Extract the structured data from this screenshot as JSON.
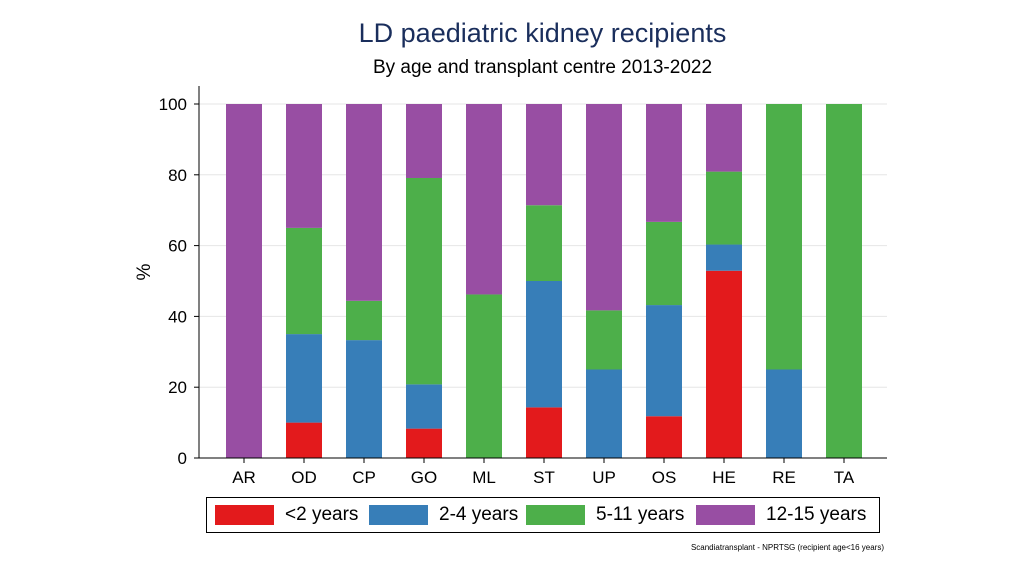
{
  "chart_data": {
    "type": "stacked-bar",
    "title": "LD paediatric kidney recipients",
    "subtitle": "By age and transplant centre 2013-2022",
    "xlabel": "",
    "ylabel": "%",
    "ylim": [
      0,
      100
    ],
    "yticks": [
      0,
      20,
      40,
      60,
      80,
      100
    ],
    "grid": true,
    "categories": [
      "AR",
      "OD",
      "CP",
      "GO",
      "ML",
      "ST",
      "UP",
      "OS",
      "HE",
      "RE",
      "TA"
    ],
    "series": [
      {
        "name": "<2 years",
        "color": "#e31a1c",
        "values": [
          0,
          10,
          0,
          8.3,
          0,
          14.3,
          0,
          11.8,
          52.9,
          0,
          0
        ]
      },
      {
        "name": "2-4 years",
        "color": "#377eb8",
        "values": [
          0,
          25,
          33.3,
          12.5,
          0,
          35.7,
          25,
          31.4,
          7.4,
          25,
          0
        ]
      },
      {
        "name": "5-11 years",
        "color": "#4daf4a",
        "values": [
          0,
          30,
          11.1,
          58.3,
          46.2,
          21.4,
          16.7,
          23.5,
          20.6,
          75,
          100
        ]
      },
      {
        "name": "12-15 years",
        "color": "#984ea3",
        "values": [
          100,
          35,
          55.6,
          20.9,
          53.8,
          28.6,
          58.3,
          33.3,
          19.1,
          0,
          0
        ]
      }
    ],
    "legend_position": "bottom",
    "footnote": "Scandiatransplant - NPRTSG (recipient age<16 years)"
  }
}
